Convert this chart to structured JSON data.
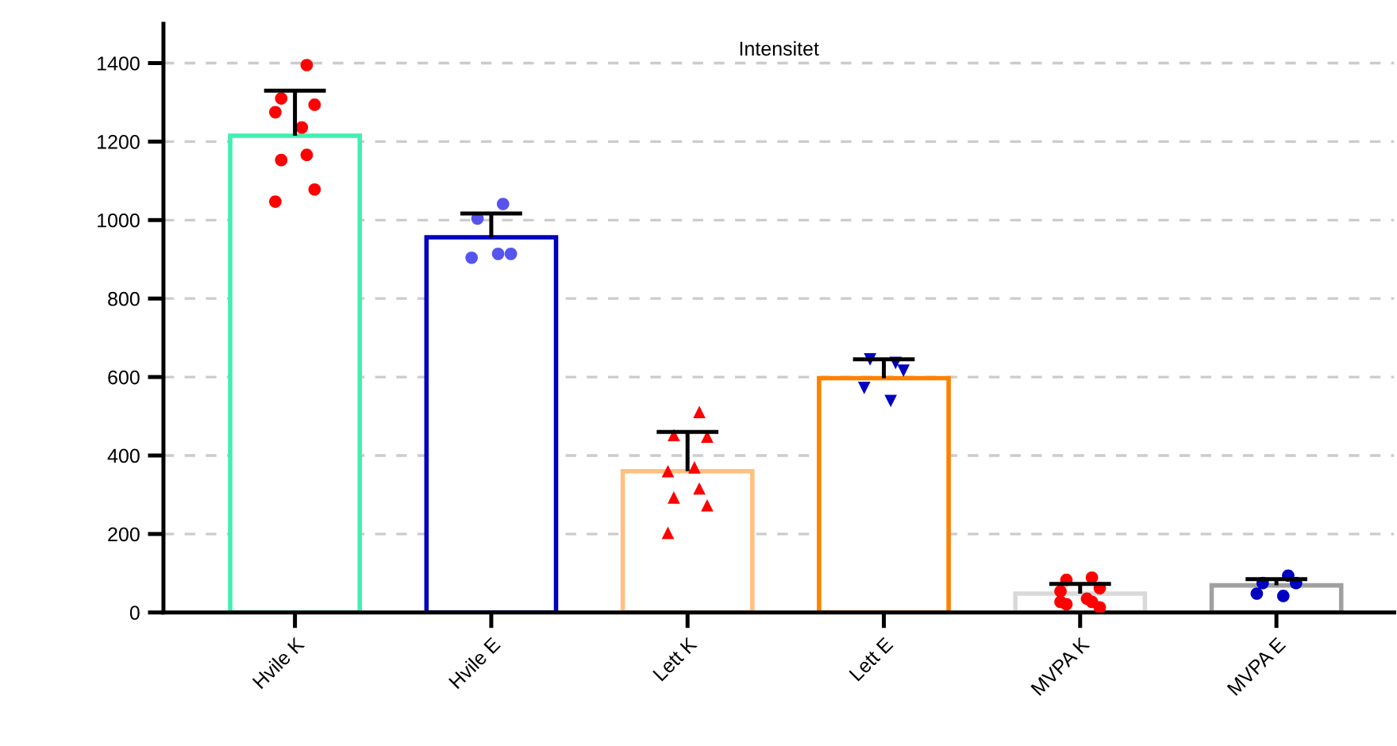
{
  "chart_data": {
    "type": "bar",
    "title": "Intensitet",
    "categories": [
      "Hvile K",
      "Hvile E",
      "Lett K",
      "Lett E",
      "MVPA K",
      "MVPA E"
    ],
    "series": [
      {
        "type": "bar",
        "colors": [
          "#40f0b0",
          "#0000c0",
          "#ffc080",
          "#ff8000",
          "#d9d9d9",
          "#a0a0a0"
        ],
        "values": [
          1215,
          956,
          360,
          597,
          48,
          69
        ],
        "errors": [
          [
            1215,
            1330
          ],
          [
            956,
            1017
          ],
          [
            360,
            460
          ],
          [
            597,
            645
          ],
          [
            48,
            73
          ],
          [
            69,
            85
          ]
        ]
      },
      {
        "type": "scatter",
        "color": "#ff0000",
        "marker": "circle",
        "x": [
          "Hvile K",
          "Hvile K",
          "Hvile K",
          "Hvile K",
          "Hvile K",
          "Hvile K",
          "Hvile K",
          "Hvile K",
          "Hvile K"
        ],
        "values": [
          1395,
          1310,
          1294,
          1275,
          1236,
          1166,
          1153,
          1078,
          1047
        ]
      },
      {
        "type": "scatter",
        "color": "#5555ee",
        "marker": "circle",
        "x": [
          "Hvile E",
          "Hvile E",
          "Hvile E",
          "Hvile E",
          "Hvile E"
        ],
        "values": [
          1041,
          1004,
          914,
          904,
          914
        ]
      },
      {
        "type": "scatter",
        "color": "#ff0000",
        "marker": "triangle",
        "x": [
          "Lett K",
          "Lett K",
          "Lett K",
          "Lett K",
          "Lett K",
          "Lett K",
          "Lett K",
          "Lett K",
          "Lett K"
        ],
        "values": [
          511,
          452,
          448,
          360,
          370,
          316,
          293,
          273,
          203
        ]
      },
      {
        "type": "scatter",
        "color": "#0000c0",
        "marker": "triangle_down",
        "x": [
          "Lett E",
          "Lett E",
          "Lett E",
          "Lett E",
          "Lett E"
        ],
        "values": [
          636,
          645,
          616,
          572,
          539
        ]
      },
      {
        "type": "scatter",
        "color": "#ff0000",
        "marker": "circle",
        "x": [
          "MVPA K",
          "MVPA K",
          "MVPA K",
          "MVPA K",
          "MVPA K",
          "MVPA K",
          "MVPA K",
          "MVPA K",
          "MVPA K"
        ],
        "values": [
          89,
          83,
          62,
          54,
          35,
          27,
          21,
          13,
          27
        ]
      },
      {
        "type": "scatter",
        "color": "#0000c0",
        "marker": "circle",
        "x": [
          "MVPA E",
          "MVPA E",
          "MVPA E",
          "MVPA E",
          "MVPA E"
        ],
        "values": [
          94,
          75,
          75,
          48,
          42
        ]
      }
    ],
    "ylim": [
      0,
      1500
    ],
    "yticks": [
      0,
      200,
      400,
      600,
      800,
      1000,
      1200,
      1400
    ],
    "grid": "y",
    "legend": false
  }
}
